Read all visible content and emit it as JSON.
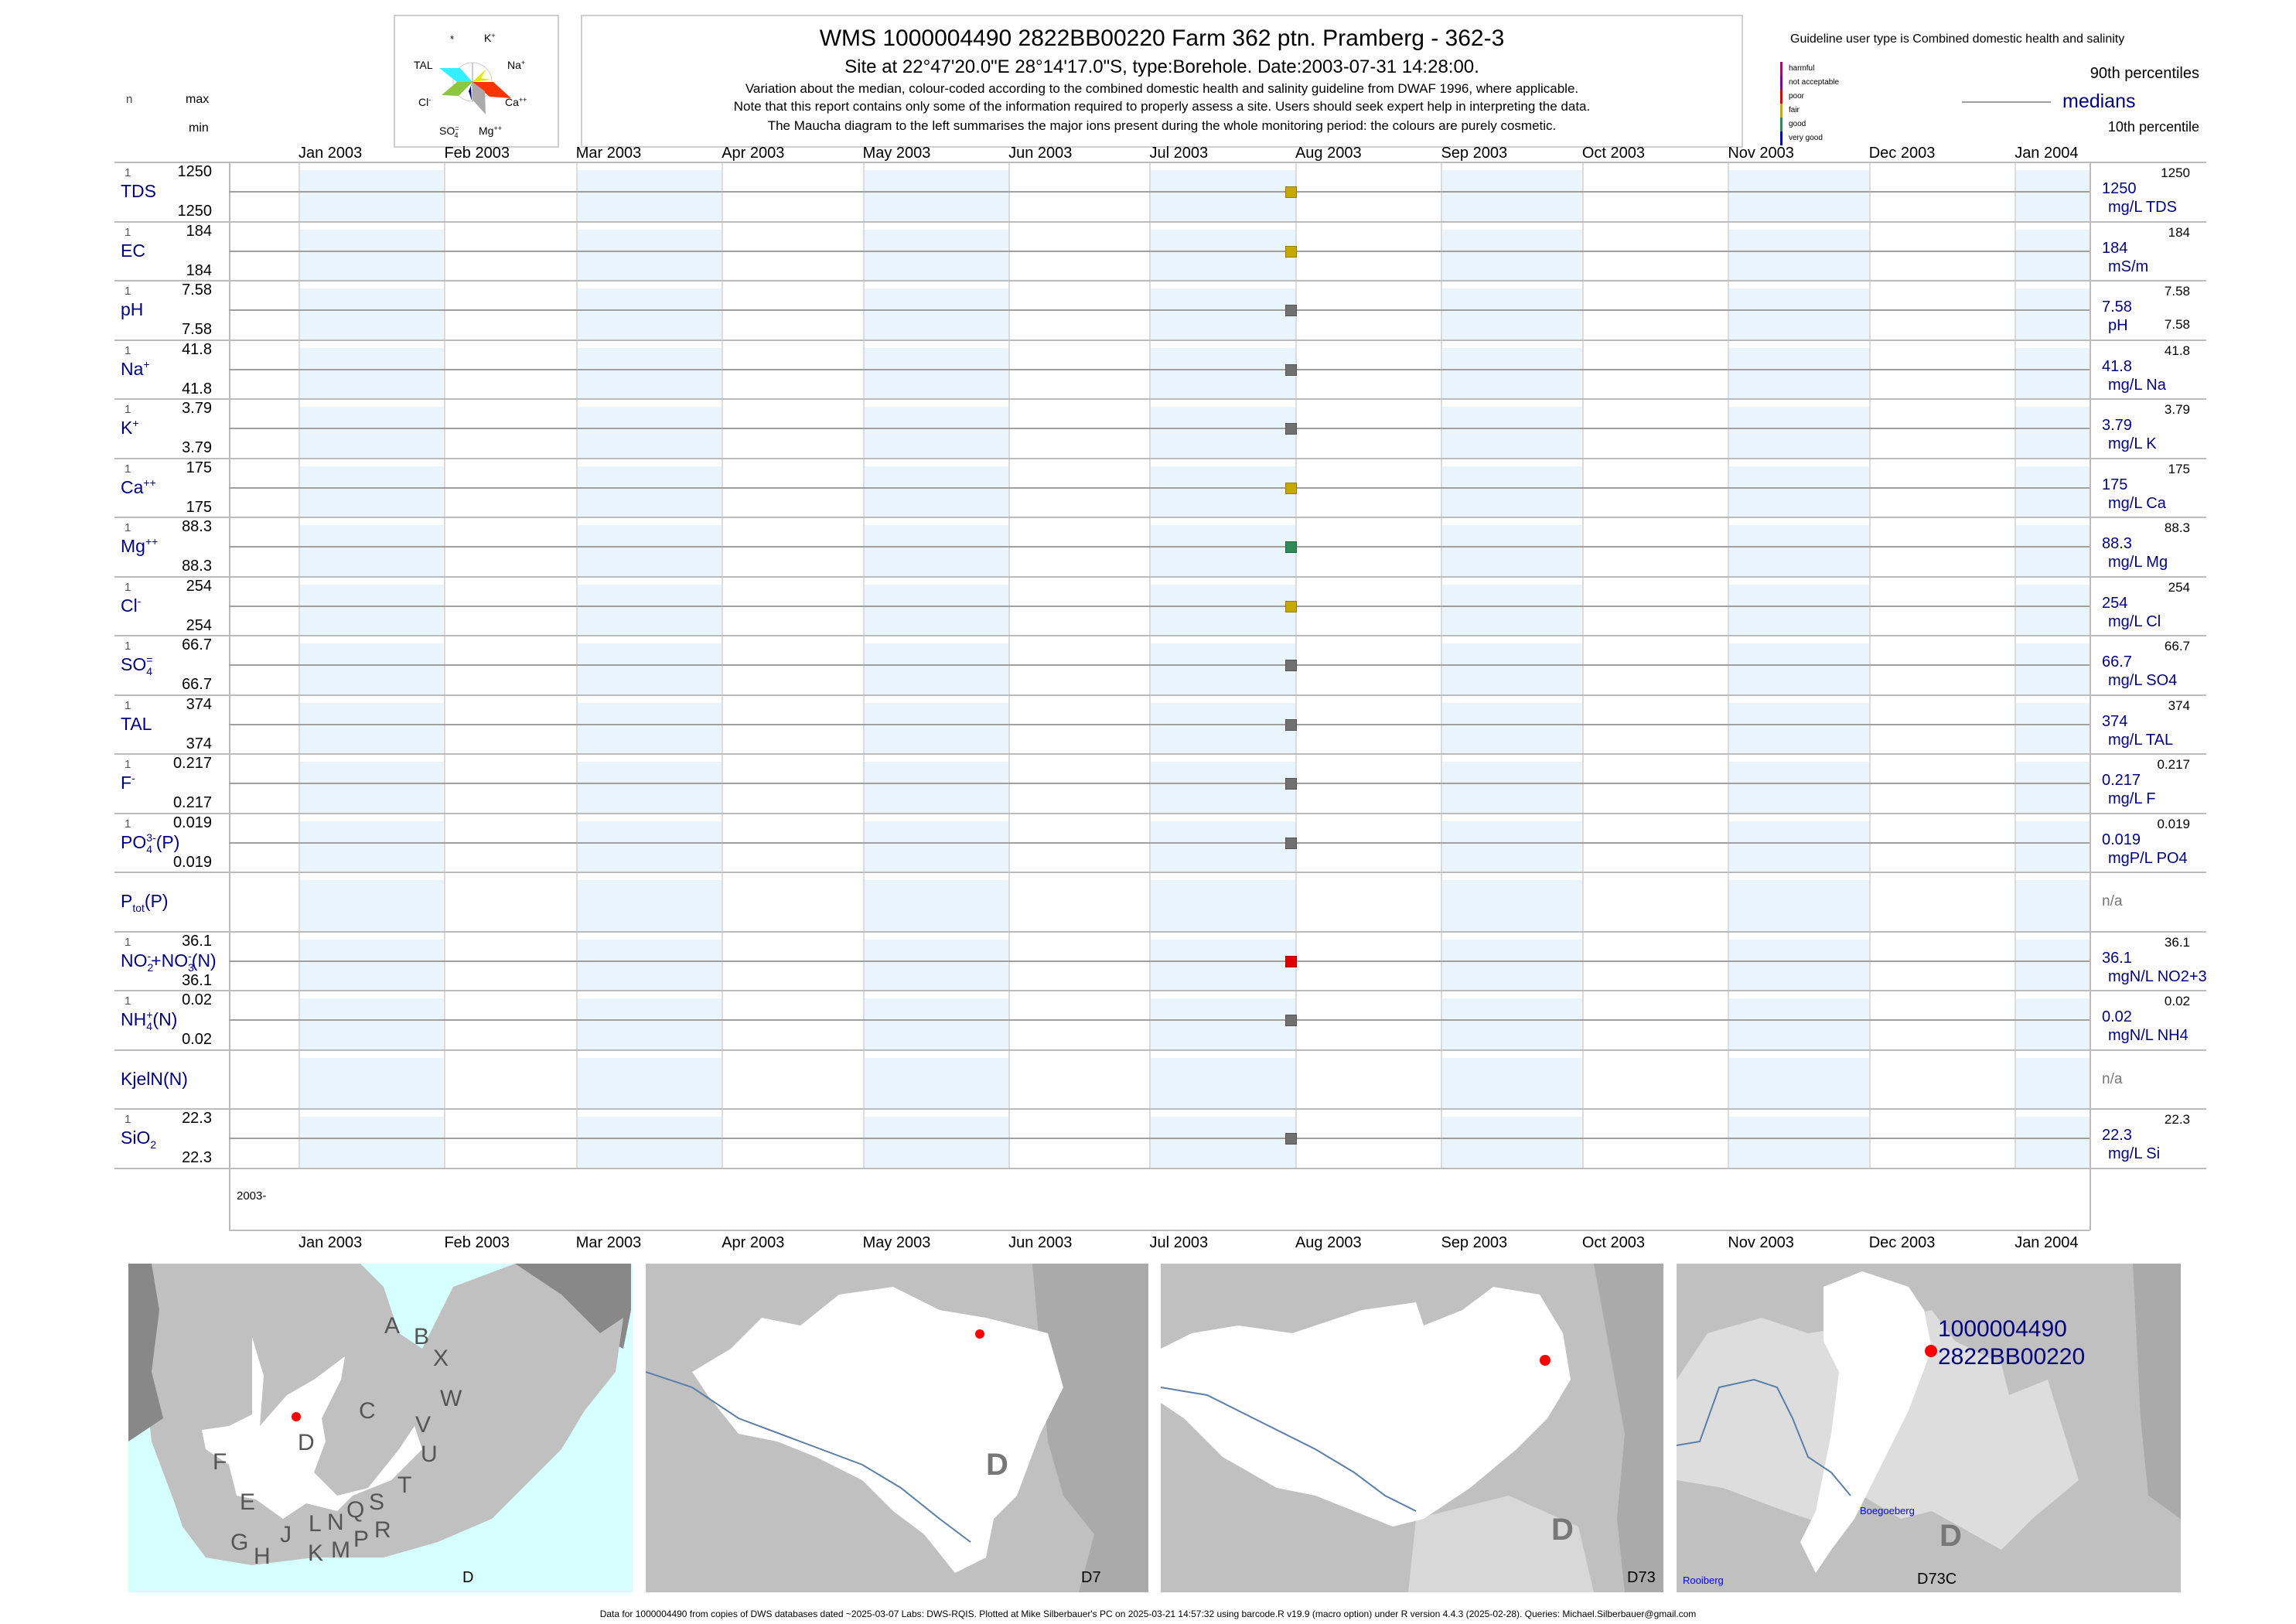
{
  "header": {
    "col_n": "n",
    "col_max": "max",
    "col_min": "min",
    "title": "WMS 1000004490 2822BB00220 Farm 362 ptn. Pramberg - 362-3",
    "subtitle": "Site at 22°47'20.0\"E 28°14'17.0\"S, type:Borehole. Date:2003-07-31 14:28:00.",
    "note1": "Variation about the median,  colour-coded according to the combined domestic health and salinity guideline from DWAF 1996, where applicable.",
    "note2": "Note that this report contains only some of the information required to properly assess a site. Users should seek expert help in interpreting the data.",
    "note3": "The Maucha diagram to the left summarises the major ions present during the whole monitoring period: the colours are purely cosmetic."
  },
  "maucha": {
    "labels": {
      "star": "*",
      "k": "K",
      "k_sup": "+",
      "tal": "TAL",
      "na": "Na",
      "na_sup": "+",
      "cl": "Cl",
      "cl_sup": "-",
      "ca": "Ca",
      "ca_sup": "++",
      "so4": "SO",
      "so4_sub": "4",
      "so4_sup": "=",
      "mg": "Mg",
      "mg_sup": "++"
    },
    "colors": {
      "tal": "#33f0ff",
      "cl": "#8dc63f",
      "ca": "#ff3300",
      "mg": "#aaaaaa",
      "na": "#e6e600",
      "so4": "#000080"
    }
  },
  "legend": {
    "guideline": "Guideline user type is Combined domestic health and salinity",
    "classes": [
      {
        "label": "harmful",
        "color": "#b0007a"
      },
      {
        "label": "not acceptable",
        "color": "#8000a0"
      },
      {
        "label": "poor",
        "color": "#e00000"
      },
      {
        "label": "fair",
        "color": "#c8a800"
      },
      {
        "label": "good",
        "color": "#2e8b57"
      },
      {
        "label": "very good",
        "color": "#0000c0"
      }
    ],
    "p90": "90th percentiles",
    "medians": "medians",
    "p10": "10th percentile"
  },
  "chart_data": {
    "type": "scatter",
    "title": "WMS 1000004490 2822BB00220 Farm 362 ptn. Pramberg - 362-3",
    "x_range": [
      "2002-12-17",
      "2004-01-14"
    ],
    "x_ticks": [
      "Jan 2003",
      "Feb 2003",
      "Mar 2003",
      "Apr 2003",
      "May 2003",
      "Jun 2003",
      "Jul 2003",
      "Aug 2003",
      "Sep 2003",
      "Oct 2003",
      "Nov 2003",
      "Dec 2003",
      "Jan 2004"
    ],
    "x_tick_dates": [
      "2003-01-01",
      "2003-02-01",
      "2003-03-01",
      "2003-04-01",
      "2003-05-01",
      "2003-06-01",
      "2003-07-01",
      "2003-08-01",
      "2003-09-01",
      "2003-10-01",
      "2003-11-01",
      "2003-12-01",
      "2004-01-01"
    ],
    "year_label": "2003-",
    "sample_date": "2003-07-31",
    "na_label": "n/a",
    "rows": [
      {
        "name": "tds",
        "label": [
          {
            "t": "TDS"
          }
        ],
        "n": "1",
        "max": "1250",
        "min": "1250",
        "median": "1250",
        "unit": "mg/L TDS",
        "p90": "1250",
        "p10": "",
        "color": "#c8a800"
      },
      {
        "name": "ec",
        "label": [
          {
            "t": "EC"
          }
        ],
        "n": "1",
        "max": "184",
        "min": "184",
        "median": "184",
        "unit": "mS/m",
        "p90": "184",
        "p10": "",
        "color": "#c8a800"
      },
      {
        "name": "ph",
        "label": [
          {
            "t": "pH"
          }
        ],
        "n": "1",
        "max": "7.58",
        "min": "7.58",
        "median": "7.58",
        "unit": "pH",
        "p90": "7.58",
        "p10": "7.58",
        "color": "#707070"
      },
      {
        "name": "na",
        "label": [
          {
            "t": "Na",
            "sup": "+"
          }
        ],
        "n": "1",
        "max": "41.8",
        "min": "41.8",
        "median": "41.8",
        "unit": "mg/L Na",
        "p90": "41.8",
        "p10": "",
        "color": "#707070"
      },
      {
        "name": "k",
        "label": [
          {
            "t": "K",
            "sup": "+"
          }
        ],
        "n": "1",
        "max": "3.79",
        "min": "3.79",
        "median": "3.79",
        "unit": "mg/L K",
        "p90": "3.79",
        "p10": "",
        "color": "#707070"
      },
      {
        "name": "ca",
        "label": [
          {
            "t": "Ca",
            "sup": "++"
          }
        ],
        "n": "1",
        "max": "175",
        "min": "175",
        "median": "175",
        "unit": "mg/L Ca",
        "p90": "175",
        "p10": "",
        "color": "#c8a800"
      },
      {
        "name": "mg",
        "label": [
          {
            "t": "Mg",
            "sup": "++"
          }
        ],
        "n": "1",
        "max": "88.3",
        "min": "88.3",
        "median": "88.3",
        "unit": "mg/L Mg",
        "p90": "88.3",
        "p10": "",
        "color": "#2e8b57"
      },
      {
        "name": "cl",
        "label": [
          {
            "t": "Cl",
            "sup": "-"
          }
        ],
        "n": "1",
        "max": "254",
        "min": "254",
        "median": "254",
        "unit": "mg/L Cl",
        "p90": "254",
        "p10": "",
        "color": "#c8a800"
      },
      {
        "name": "so4",
        "label": [
          {
            "t": "SO",
            "sup": "=",
            "sub": "4"
          }
        ],
        "n": "1",
        "max": "66.7",
        "min": "66.7",
        "median": "66.7",
        "unit": "mg/L SO4",
        "p90": "66.7",
        "p10": "",
        "color": "#707070"
      },
      {
        "name": "tal",
        "label": [
          {
            "t": "TAL"
          }
        ],
        "n": "1",
        "max": "374",
        "min": "374",
        "median": "374",
        "unit": "mg/L TAL",
        "p90": "374",
        "p10": "",
        "color": "#707070"
      },
      {
        "name": "f",
        "label": [
          {
            "t": "F",
            "sup": "-"
          }
        ],
        "n": "1",
        "max": "0.217",
        "min": "0.217",
        "median": "0.217",
        "unit": "mg/L F",
        "p90": "0.217",
        "p10": "",
        "color": "#707070"
      },
      {
        "name": "po4",
        "label": [
          {
            "t": "PO",
            "sup": "3-",
            "sub": "4"
          },
          {
            "t": "(P)"
          }
        ],
        "n": "1",
        "max": "0.019",
        "min": "0.019",
        "median": "0.019",
        "unit": "mgP/L PO4",
        "p90": "0.019",
        "p10": "",
        "color": "#707070"
      },
      {
        "name": "ptot",
        "label": [
          {
            "t": "P",
            "sub": "tot"
          },
          {
            "t": "(P)"
          }
        ],
        "na": true
      },
      {
        "name": "nox",
        "label": [
          {
            "t": "NO",
            "sup": "-",
            "sub": "2"
          },
          {
            "t": "+NO",
            "sup": "-",
            "sub": "3"
          },
          {
            "t": "(N)"
          }
        ],
        "n": "1",
        "max": "36.1",
        "min": "36.1",
        "median": "36.1",
        "unit": "mgN/L NO2+3",
        "p90": "36.1",
        "p10": "",
        "color": "#e00000"
      },
      {
        "name": "nh4",
        "label": [
          {
            "t": "NH",
            "sup": "+",
            "sub": "4"
          },
          {
            "t": "(N)"
          }
        ],
        "n": "1",
        "max": "0.02",
        "min": "0.02",
        "median": "0.02",
        "unit": "mgN/L NH4",
        "p90": "0.02",
        "p10": "",
        "color": "#707070"
      },
      {
        "name": "kjeln",
        "label": [
          {
            "t": "KjelN(N)"
          }
        ],
        "na": true
      },
      {
        "name": "sio2",
        "label": [
          {
            "t": "SiO",
            "sub": "2"
          }
        ],
        "n": "1",
        "max": "22.3",
        "min": "22.3",
        "median": "22.3",
        "unit": "mg/L Si",
        "p90": "22.3",
        "p10": "",
        "color": "#707070"
      }
    ]
  },
  "maps": {
    "m1": {
      "caption": "D",
      "letters": [
        "A",
        "B",
        "X",
        "C",
        "W",
        "V",
        "D",
        "U",
        "F",
        "T",
        "E",
        "S",
        "Q",
        "N",
        "L",
        "R",
        "P",
        "J",
        "G",
        "H",
        "K",
        "M"
      ]
    },
    "m2": {
      "caption": "D7",
      "region": "D"
    },
    "m3": {
      "caption": "D73",
      "region": "D"
    },
    "m4": {
      "caption": "D73C",
      "region": "D",
      "site_id": "1000004490",
      "site_code": "2822BB00220",
      "place1": "Boegoeberg",
      "place2": "Rooiberg"
    }
  },
  "footer": "Data for 1000004490 from copies of DWS databases dated ~2025-03-07 Labs: DWS-RQIS. Plotted at Mike Silberbauer's PC on 2025-03-21 14:57:32 using barcode.R v19.9 (macro option) under R version 4.4.3 (2025-02-28). Queries: Michael.Silberbauer@gmail.com"
}
